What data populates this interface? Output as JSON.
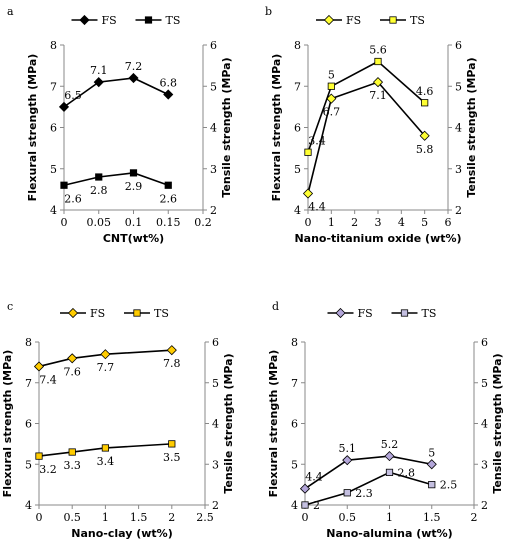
{
  "chart_data": [
    {
      "type": "line",
      "panel": "a",
      "xlabel": "CNT(wt%)",
      "ylabel": "Flexural strength (MPa)",
      "y2label": "Tensile strength (MPa)",
      "x_ticks": [
        0,
        0.05,
        0.1,
        0.15,
        0.2
      ],
      "x_tick_labels": [
        "0",
        "0.05",
        "0.1",
        "0.15",
        "0.2"
      ],
      "xlim": [
        0,
        0.2
      ],
      "ylim": [
        4,
        8
      ],
      "y2lim": [
        2,
        6
      ],
      "legend_position": "top",
      "style": {
        "marker_fs": "diamond",
        "marker_ts": "square",
        "fill_fs": "#000000",
        "fill_ts": "#000000"
      },
      "series": [
        {
          "name": "FS",
          "axis": "left",
          "x": [
            0,
            0.05,
            0.1,
            0.15
          ],
          "values": [
            6.5,
            7.1,
            7.2,
            6.8
          ],
          "labels": [
            "6.5",
            "7.1",
            "7.2",
            "6.8"
          ],
          "label_pos": "above"
        },
        {
          "name": "TS",
          "axis": "right",
          "x": [
            0,
            0.05,
            0.1,
            0.15
          ],
          "values": [
            2.6,
            2.8,
            2.9,
            2.6
          ],
          "labels": [
            "2.6",
            "2.8",
            "2.9",
            "2.6"
          ],
          "label_pos": "below"
        }
      ]
    },
    {
      "type": "line",
      "panel": "b",
      "xlabel": "Nano-titanium oxide (wt%)",
      "ylabel": "Flexural strength (MPa)",
      "y2label": "Tensile strength (MPa)",
      "x_ticks": [
        0,
        1,
        2,
        3,
        4,
        5,
        6
      ],
      "x_tick_labels": [
        "0",
        "1",
        "2",
        "3",
        "4",
        "5",
        "6"
      ],
      "xlim": [
        0,
        6
      ],
      "ylim": [
        4,
        8
      ],
      "y2lim": [
        2,
        6
      ],
      "legend_position": "top",
      "style": {
        "marker_fs": "diamond",
        "marker_ts": "square",
        "fill_fs": "#ffff33",
        "fill_ts": "#ffff33"
      },
      "series": [
        {
          "name": "FS",
          "axis": "left",
          "x": [
            0,
            1,
            3,
            5
          ],
          "values": [
            4.4,
            6.7,
            7.1,
            5.8
          ],
          "labels": [
            "4.4",
            "6.7",
            "7.1",
            "5.8"
          ],
          "label_pos": "below"
        },
        {
          "name": "TS",
          "axis": "right",
          "x": [
            0,
            1,
            3,
            5
          ],
          "values": [
            3.4,
            5.0,
            5.6,
            4.6
          ],
          "labels": [
            "3.4",
            "5",
            "5.6",
            "4.6"
          ],
          "label_pos": "above"
        }
      ]
    },
    {
      "type": "line",
      "panel": "c",
      "xlabel": "Nano-clay (wt%)",
      "ylabel": "Flexural strength (MPa)",
      "y2label": "Tensile strength (MPa)",
      "x_ticks": [
        0,
        0.5,
        1,
        1.5,
        2,
        2.5
      ],
      "x_tick_labels": [
        "0",
        "0.5",
        "1",
        "1.5",
        "2",
        "2.5"
      ],
      "xlim": [
        0,
        2.5
      ],
      "ylim": [
        4,
        8
      ],
      "y2lim": [
        2,
        6
      ],
      "legend_position": "top",
      "style": {
        "marker_fs": "diamond",
        "marker_ts": "square",
        "fill_fs": "#ffcc00",
        "fill_ts": "#ffcc00"
      },
      "series": [
        {
          "name": "FS",
          "axis": "left",
          "x": [
            0,
            0.5,
            1,
            2
          ],
          "values": [
            7.4,
            7.6,
            7.7,
            7.8
          ],
          "labels": [
            "7.4",
            "7.6",
            "7.7",
            "7.8"
          ],
          "label_pos": "below"
        },
        {
          "name": "TS",
          "axis": "right",
          "x": [
            0,
            0.5,
            1,
            2
          ],
          "values": [
            3.2,
            3.3,
            3.4,
            3.5
          ],
          "labels": [
            "3.2",
            "3.3",
            "3.4",
            "3.5"
          ],
          "label_pos": "below"
        }
      ]
    },
    {
      "type": "line",
      "panel": "d",
      "xlabel": "Nano-alumina (wt%)",
      "ylabel": "Flexural strength (MPa)",
      "y2label": "Tensile strength (MPa)",
      "x_ticks": [
        0,
        0.5,
        1,
        1.5,
        2
      ],
      "x_tick_labels": [
        "0",
        "0.5",
        "1",
        "1.5",
        "2"
      ],
      "xlim": [
        0,
        2
      ],
      "ylim": [
        4,
        8
      ],
      "y2lim": [
        2,
        6
      ],
      "legend_position": "top",
      "style": {
        "marker_fs": "diamond",
        "marker_ts": "square",
        "fill_fs": "#b3a6d9",
        "fill_ts": "#c4bfe0"
      },
      "series": [
        {
          "name": "FS",
          "axis": "left",
          "x": [
            0,
            0.5,
            1,
            1.5
          ],
          "values": [
            4.4,
            5.1,
            5.2,
            5.0
          ],
          "labels": [
            "4.4",
            "5.1",
            "5.2",
            "5"
          ],
          "label_pos": "above"
        },
        {
          "name": "TS",
          "axis": "right",
          "x": [
            0,
            0.5,
            1,
            1.5
          ],
          "values": [
            2.0,
            2.3,
            2.8,
            2.5
          ],
          "labels": [
            "2",
            "2.3",
            "2.8",
            "2.5"
          ],
          "label_pos": "right"
        }
      ]
    }
  ]
}
